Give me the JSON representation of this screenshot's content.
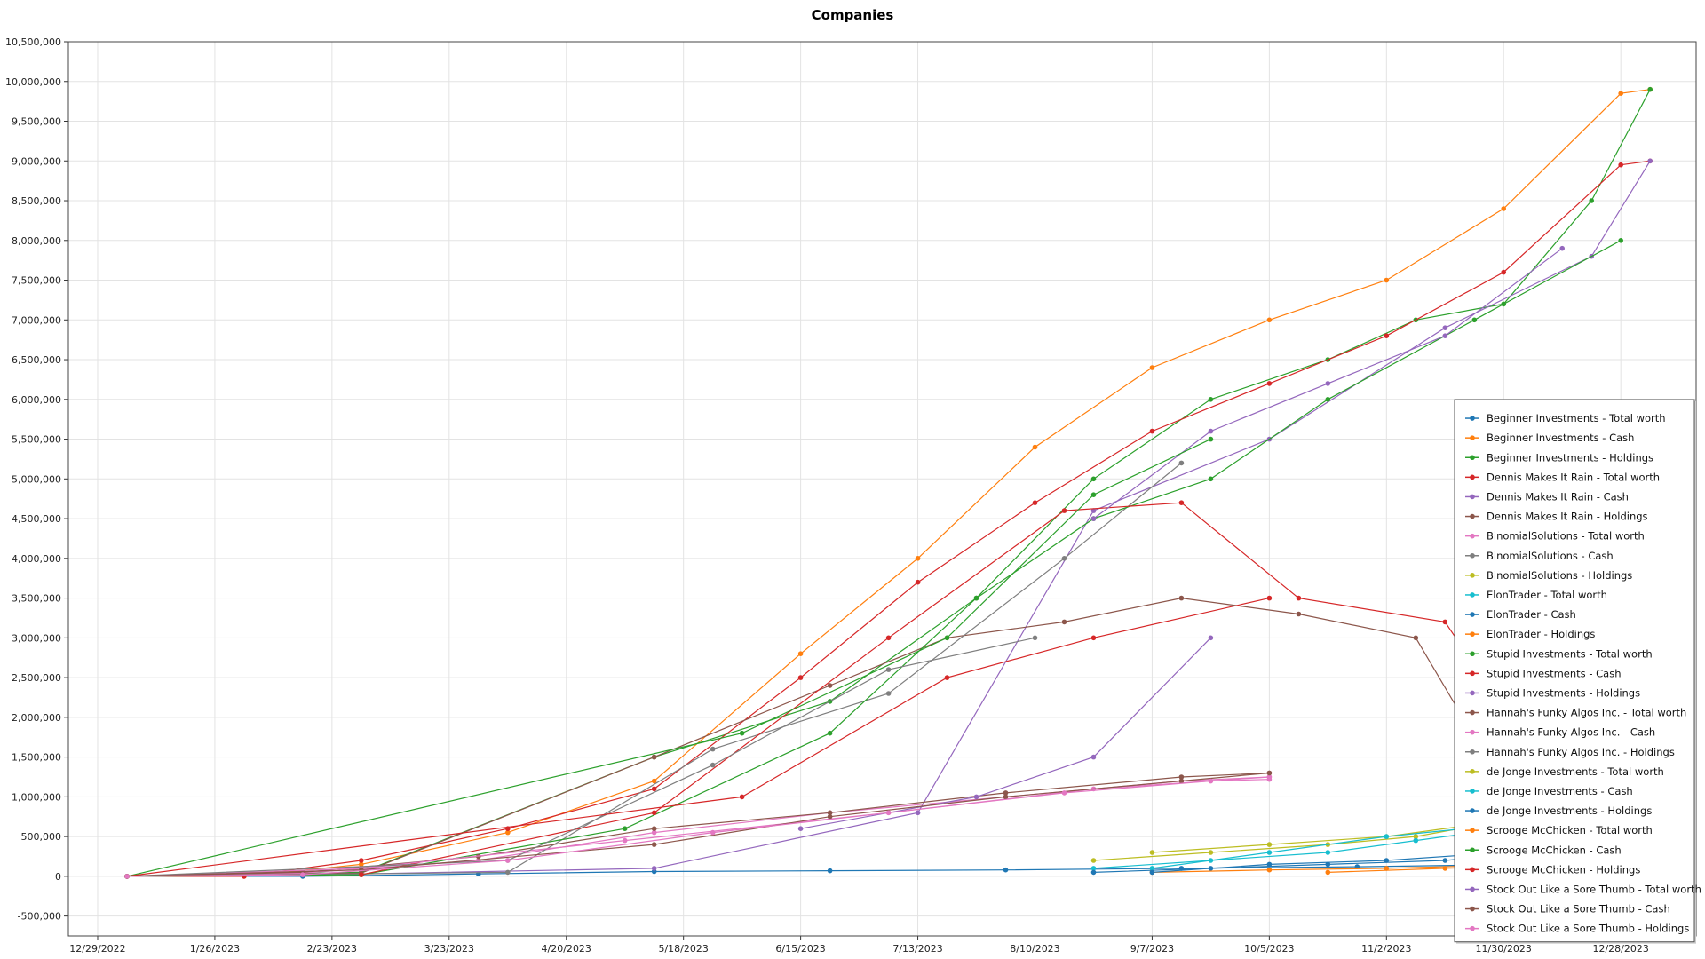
{
  "chart_data": {
    "type": "line",
    "title": "Companies",
    "xlabel": "",
    "ylabel": "",
    "ylim": [
      -750000,
      10500000
    ],
    "y_ticks": [
      -500000,
      0,
      500000,
      1000000,
      1500000,
      2000000,
      2500000,
      3000000,
      3500000,
      4000000,
      4500000,
      5000000,
      5500000,
      6000000,
      6500000,
      7000000,
      7500000,
      8000000,
      8500000,
      9000000,
      9500000,
      10000000,
      10500000
    ],
    "y_tick_labels": [
      "-500,000",
      "0",
      "500,000",
      "1,000,000",
      "1,500,000",
      "2,000,000",
      "2,500,000",
      "3,000,000",
      "3,500,000",
      "4,000,000",
      "4,500,000",
      "5,000,000",
      "5,500,000",
      "6,000,000",
      "6,500,000",
      "7,000,000",
      "7,500,000",
      "8,000,000",
      "8,500,000",
      "9,000,000",
      "9,500,000",
      "10,000,000",
      "10,500,000"
    ],
    "x_tick_labels": [
      "12/29/2022",
      "1/26/2023",
      "2/23/2023",
      "3/23/2023",
      "4/20/2023",
      "5/18/2023",
      "6/15/2023",
      "7/13/2023",
      "8/10/2023",
      "9/7/2023",
      "10/5/2023",
      "11/2/2023",
      "11/30/2023",
      "12/28/2023"
    ],
    "x_range": [
      "12/22/2022",
      "1/15/2024"
    ],
    "grid": true,
    "legend_position": "right",
    "series": [
      {
        "name": "Beginner Investments - Total worth",
        "color": "#1f77b4",
        "x": [
          "1/5/2023",
          "2/16/2023",
          "3/30/2023",
          "5/11/2023",
          "6/22/2023",
          "8/3/2023",
          "9/14/2023",
          "10/26/2023",
          "12/7/2023",
          "1/4/2024"
        ],
        "y": [
          0,
          0,
          30000,
          60000,
          70000,
          80000,
          100000,
          120000,
          150000,
          100000
        ]
      },
      {
        "name": "Beginner Investments - Cash",
        "color": "#ff7f0e",
        "x": [
          "1/5/2023",
          "2/2/2023",
          "3/2/2023",
          "4/6/2023",
          "5/11/2023",
          "6/15/2023",
          "7/13/2023",
          "8/10/2023",
          "9/7/2023",
          "10/5/2023",
          "11/2/2023",
          "11/30/2023",
          "12/28/2023",
          "1/4/2024"
        ],
        "y": [
          0,
          0,
          150000,
          550000,
          1200000,
          2800000,
          4000000,
          5400000,
          6400000,
          7000000,
          7500000,
          8400000,
          9850000,
          9900000
        ]
      },
      {
        "name": "Beginner Investments - Holdings",
        "color": "#2ca02c",
        "x": [
          "1/5/2023",
          "3/2/2023",
          "5/11/2023",
          "6/22/2023",
          "7/27/2023",
          "8/24/2023",
          "9/21/2023",
          "10/19/2023",
          "11/9/2023",
          "11/30/2023",
          "12/21/2023",
          "1/4/2024"
        ],
        "y": [
          0,
          50000,
          1500000,
          2200000,
          3500000,
          5000000,
          6000000,
          6500000,
          7000000,
          7200000,
          8500000,
          9900000
        ]
      },
      {
        "name": "Dennis Makes It Rain - Total worth",
        "color": "#d62728",
        "x": [
          "1/5/2023",
          "2/2/2023",
          "3/2/2023",
          "4/6/2023",
          "5/11/2023",
          "6/15/2023",
          "7/13/2023",
          "8/10/2023",
          "9/7/2023",
          "10/5/2023",
          "11/2/2023",
          "11/30/2023",
          "12/28/2023",
          "1/4/2024"
        ],
        "y": [
          0,
          0,
          200000,
          600000,
          1100000,
          2500000,
          3700000,
          4700000,
          5600000,
          6200000,
          6800000,
          7600000,
          8950000,
          9000000
        ]
      },
      {
        "name": "Dennis Makes It Rain - Cash",
        "color": "#9467bd",
        "x": [
          "1/5/2023",
          "3/2/2023",
          "5/11/2023",
          "7/13/2023",
          "8/24/2023",
          "10/5/2023",
          "11/16/2023",
          "12/21/2023",
          "1/4/2024"
        ],
        "y": [
          0,
          30000,
          100000,
          800000,
          4600000,
          5500000,
          6900000,
          7800000,
          9000000
        ]
      },
      {
        "name": "Dennis Makes It Rain - Holdings",
        "color": "#8c564b",
        "x": [
          "1/5/2023",
          "3/2/2023",
          "5/11/2023",
          "6/22/2023",
          "7/20/2023",
          "8/17/2023",
          "9/14/2023",
          "10/12/2023",
          "11/9/2023",
          "12/7/2023"
        ],
        "y": [
          0,
          40000,
          1500000,
          2400000,
          3000000,
          3200000,
          3500000,
          3300000,
          3000000,
          500000
        ]
      },
      {
        "name": "BinomialSolutions - Total worth",
        "color": "#e377c2",
        "x": [
          "1/5/2023",
          "2/16/2023",
          "3/30/2023",
          "5/11/2023",
          "6/22/2023",
          "8/3/2023",
          "9/14/2023",
          "10/5/2023"
        ],
        "y": [
          0,
          40000,
          200000,
          550000,
          800000,
          1000000,
          1200000,
          1250000
        ]
      },
      {
        "name": "BinomialSolutions - Cash",
        "color": "#7f7f7f",
        "x": [
          "1/5/2023",
          "4/6/2023",
          "5/25/2023",
          "7/6/2023",
          "8/17/2023",
          "9/14/2023"
        ],
        "y": [
          0,
          50000,
          1600000,
          2300000,
          4000000,
          5200000
        ]
      },
      {
        "name": "BinomialSolutions - Holdings",
        "color": "#bcbd22",
        "x": [
          "8/24/2023",
          "9/21/2023",
          "10/19/2023",
          "11/9/2023",
          "11/30/2023",
          "12/14/2023"
        ],
        "y": [
          200000,
          300000,
          400000,
          500000,
          700000,
          900000
        ]
      },
      {
        "name": "ElonTrader - Total worth",
        "color": "#17becf",
        "x": [
          "8/24/2023",
          "9/21/2023",
          "10/19/2023",
          "11/9/2023",
          "11/30/2023",
          "12/14/2023"
        ],
        "y": [
          100000,
          200000,
          300000,
          450000,
          600000,
          800000
        ]
      },
      {
        "name": "ElonTrader - Cash",
        "color": "#1f77b4",
        "x": [
          "8/24/2023",
          "9/21/2023",
          "10/19/2023",
          "11/16/2023",
          "12/7/2023"
        ],
        "y": [
          50000,
          100000,
          150000,
          200000,
          300000
        ]
      },
      {
        "name": "ElonTrader - Holdings",
        "color": "#ff7f0e",
        "x": [
          "9/7/2023",
          "10/5/2023",
          "11/2/2023",
          "12/7/2023"
        ],
        "y": [
          50000,
          80000,
          100000,
          150000
        ]
      },
      {
        "name": "Stupid Investments - Total worth",
        "color": "#2ca02c",
        "x": [
          "1/5/2023",
          "3/2/2023",
          "5/4/2023",
          "6/22/2023",
          "7/27/2023",
          "8/24/2023",
          "9/21/2023",
          "10/19/2023",
          "11/23/2023",
          "12/28/2023"
        ],
        "y": [
          0,
          20000,
          600000,
          1800000,
          3500000,
          4500000,
          5000000,
          6000000,
          7000000,
          8000000
        ]
      },
      {
        "name": "Stupid Investments - Cash",
        "color": "#d62728",
        "x": [
          "3/2/2023",
          "5/11/2023",
          "7/6/2023",
          "8/17/2023",
          "9/14/2023",
          "10/12/2023",
          "11/16/2023",
          "12/14/2023"
        ],
        "y": [
          20000,
          800000,
          3000000,
          4600000,
          4700000,
          3500000,
          3200000,
          1000000
        ]
      },
      {
        "name": "Stupid Investments - Holdings",
        "color": "#9467bd",
        "x": [
          "8/24/2023",
          "9/21/2023",
          "10/19/2023",
          "11/16/2023",
          "12/14/2023"
        ],
        "y": [
          4500000,
          5600000,
          6200000,
          6800000,
          7900000
        ]
      },
      {
        "name": "Hannah's Funky Algos Inc. - Total worth",
        "color": "#8c564b",
        "x": [
          "1/5/2023",
          "2/16/2023",
          "3/30/2023",
          "5/11/2023",
          "6/22/2023",
          "8/3/2023",
          "9/14/2023",
          "10/5/2023"
        ],
        "y": [
          0,
          50000,
          250000,
          600000,
          800000,
          1050000,
          1250000,
          1300000
        ]
      },
      {
        "name": "Hannah's Funky Algos Inc. - Cash",
        "color": "#e377c2",
        "x": [
          "1/5/2023",
          "3/2/2023",
          "5/4/2023",
          "7/6/2023",
          "8/24/2023",
          "9/21/2023",
          "10/5/2023"
        ],
        "y": [
          0,
          100000,
          450000,
          800000,
          1100000,
          1200000,
          1250000
        ]
      },
      {
        "name": "Hannah's Funky Algos Inc. - Holdings",
        "color": "#7f7f7f",
        "x": [
          "1/5/2023",
          "4/6/2023",
          "5/25/2023",
          "7/6/2023",
          "8/10/2023"
        ],
        "y": [
          0,
          200000,
          1400000,
          2600000,
          3000000
        ]
      },
      {
        "name": "de Jonge Investments - Total worth",
        "color": "#bcbd22",
        "x": [
          "9/7/2023",
          "10/5/2023",
          "11/2/2023",
          "11/30/2023",
          "12/14/2023"
        ],
        "y": [
          300000,
          400000,
          500000,
          700000,
          900000
        ]
      },
      {
        "name": "de Jonge Investments - Cash",
        "color": "#17becf",
        "x": [
          "9/7/2023",
          "10/5/2023",
          "11/2/2023",
          "11/30/2023"
        ],
        "y": [
          100000,
          300000,
          500000,
          650000
        ]
      },
      {
        "name": "de Jonge Investments - Holdings",
        "color": "#1f77b4",
        "x": [
          "9/7/2023",
          "10/5/2023",
          "11/2/2023",
          "11/30/2023"
        ],
        "y": [
          50000,
          150000,
          200000,
          300000
        ]
      },
      {
        "name": "Scrooge McChicken - Total worth",
        "color": "#ff7f0e",
        "x": [
          "10/19/2023",
          "11/16/2023",
          "12/14/2023"
        ],
        "y": [
          50000,
          100000,
          150000
        ]
      },
      {
        "name": "Scrooge McChicken - Cash",
        "color": "#2ca02c",
        "x": [
          "1/5/2023",
          "6/1/2023",
          "7/20/2023",
          "8/24/2023",
          "9/21/2023"
        ],
        "y": [
          0,
          1800000,
          3000000,
          4800000,
          5500000
        ]
      },
      {
        "name": "Scrooge McChicken - Holdings",
        "color": "#d62728",
        "x": [
          "1/5/2023",
          "6/1/2023",
          "7/20/2023",
          "8/24/2023",
          "10/5/2023"
        ],
        "y": [
          0,
          1000000,
          2500000,
          3000000,
          3500000
        ]
      },
      {
        "name": "Stock Out Like a Sore Thumb - Total worth",
        "color": "#9467bd",
        "x": [
          "6/15/2023",
          "7/27/2023",
          "8/24/2023",
          "9/21/2023"
        ],
        "y": [
          600000,
          1000000,
          1500000,
          3000000
        ]
      },
      {
        "name": "Stock Out Like a Sore Thumb - Cash",
        "color": "#8c564b",
        "x": [
          "1/5/2023",
          "3/2/2023",
          "5/11/2023",
          "6/22/2023",
          "8/3/2023",
          "9/14/2023",
          "10/5/2023"
        ],
        "y": [
          0,
          80000,
          400000,
          750000,
          1000000,
          1200000,
          1300000
        ]
      },
      {
        "name": "Stock Out Like a Sore Thumb - Holdings",
        "color": "#e377c2",
        "x": [
          "1/5/2023",
          "2/16/2023",
          "4/6/2023",
          "5/25/2023",
          "7/6/2023",
          "8/17/2023",
          "9/21/2023",
          "10/5/2023"
        ],
        "y": [
          0,
          20000,
          200000,
          550000,
          800000,
          1050000,
          1200000,
          1220000
        ]
      }
    ]
  }
}
